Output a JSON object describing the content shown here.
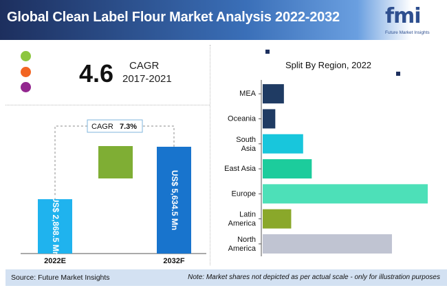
{
  "header": {
    "title": "Global Clean Label Flour Market Analysis 2022-2032"
  },
  "logo": {
    "text": "fmi",
    "subtitle": "Future Market Insights"
  },
  "cagr_box": {
    "value": "4.6",
    "label": "CAGR",
    "years": "2017-2021"
  },
  "legend_dots": [
    {
      "name": "green-dot",
      "color": "#8cc63f"
    },
    {
      "name": "orange-dot",
      "color": "#f26522"
    },
    {
      "name": "purple-dot",
      "color": "#93278f"
    }
  ],
  "footer": {
    "source": "Source: Future Market Insights",
    "note": "Note: Market shares not depicted as per actual scale - only for illustration purposes"
  },
  "chart_data": [
    {
      "type": "bar",
      "categories": [
        "2022E",
        "2032F"
      ],
      "values": [
        2868.5,
        5634.5
      ],
      "value_labels": [
        "US$ 2,868.5 Mn",
        "US$ 5,634.5 Mn"
      ],
      "bridge_label": "CAGR",
      "bridge_value": "7.3%",
      "colors": {
        "bar1": "#1fb3ee",
        "bar2": "#1874cd",
        "bridge": "#7fae34"
      }
    },
    {
      "type": "bar",
      "orientation": "horizontal",
      "title": "Split By Region, 2022",
      "categories": [
        "MEA",
        "Oceania",
        "South Asia",
        "East Asia",
        "Europe",
        "Latin America",
        "North America"
      ],
      "category_lines": [
        [
          "MEA"
        ],
        [
          "Oceania"
        ],
        [
          "South",
          "Asia"
        ],
        [
          "East Asia"
        ],
        [
          "Europe"
        ],
        [
          "Latin",
          "America"
        ],
        [
          "North",
          "America"
        ]
      ],
      "values": [
        3.2,
        1.9,
        6.1,
        7.4,
        24.9,
        4.3,
        19.5
      ],
      "colors": [
        "#1f3b63",
        "#1f3b63",
        "#18c6dc",
        "#1ccc9c",
        "#4de0b8",
        "#8aa82a",
        "#c0c4d2"
      ]
    }
  ]
}
